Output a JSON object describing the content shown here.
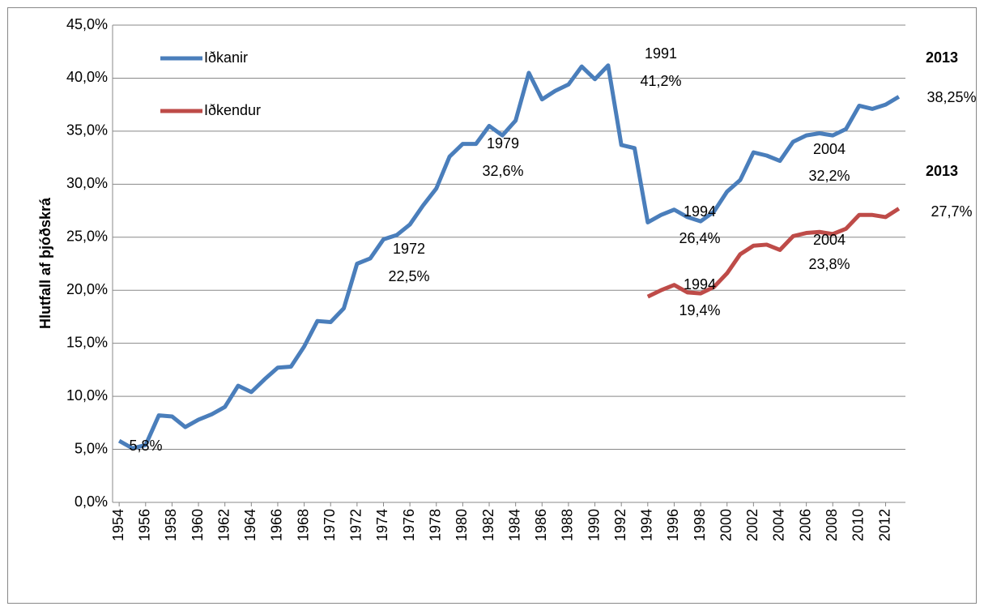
{
  "chart_data": {
    "type": "line",
    "y_label": "Hlutfall af þjóðskrá",
    "x": [
      1954,
      1955,
      1956,
      1957,
      1958,
      1959,
      1960,
      1961,
      1962,
      1963,
      1964,
      1965,
      1966,
      1967,
      1968,
      1969,
      1970,
      1971,
      1972,
      1973,
      1974,
      1975,
      1976,
      1977,
      1978,
      1979,
      1980,
      1981,
      1982,
      1983,
      1984,
      1985,
      1986,
      1987,
      1988,
      1989,
      1990,
      1991,
      1992,
      1993,
      1994,
      1995,
      1996,
      1997,
      1998,
      1999,
      2000,
      2001,
      2002,
      2003,
      2004,
      2005,
      2006,
      2007,
      2008,
      2009,
      2010,
      2011,
      2012,
      2013
    ],
    "xlim": [
      1953.5,
      2013.5
    ],
    "xticks": [
      1954,
      1956,
      1958,
      1960,
      1962,
      1964,
      1966,
      1968,
      1970,
      1972,
      1974,
      1976,
      1978,
      1980,
      1982,
      1984,
      1986,
      1988,
      1990,
      1992,
      1994,
      1996,
      1998,
      2000,
      2002,
      2004,
      2006,
      2008,
      2010,
      2012
    ],
    "ylim": [
      0,
      45
    ],
    "yticks": [
      {
        "value": 0,
        "label": "0,0%"
      },
      {
        "value": 5,
        "label": "5,0%"
      },
      {
        "value": 10,
        "label": "10,0%"
      },
      {
        "value": 15,
        "label": "15,0%"
      },
      {
        "value": 20,
        "label": "20,0%"
      },
      {
        "value": 25,
        "label": "25,0%"
      },
      {
        "value": 30,
        "label": "30,0%"
      },
      {
        "value": 35,
        "label": "35,0%"
      },
      {
        "value": 40,
        "label": "40,0%"
      },
      {
        "value": 45,
        "label": "45,0%"
      }
    ],
    "grid": true,
    "legend": "top-left",
    "series": [
      {
        "name": "Iðkanir",
        "color": "#4a7ebb",
        "values": [
          5.8,
          5.1,
          5.4,
          8.2,
          8.1,
          7.1,
          7.8,
          8.3,
          9.0,
          11.0,
          10.4,
          11.6,
          12.7,
          12.8,
          14.7,
          17.1,
          17.0,
          18.3,
          22.5,
          23.0,
          24.8,
          25.2,
          26.2,
          28.0,
          29.6,
          32.6,
          33.8,
          33.8,
          35.5,
          34.6,
          36.0,
          40.5,
          38.0,
          38.8,
          39.4,
          41.1,
          39.9,
          41.2,
          33.7,
          33.4,
          26.4,
          27.1,
          27.6,
          26.9,
          26.5,
          27.4,
          29.3,
          30.4,
          33.0,
          32.7,
          32.2,
          34.0,
          34.6,
          34.8,
          34.6,
          35.2,
          37.4,
          37.1,
          37.5,
          38.25
        ]
      },
      {
        "name": "Iðkendur",
        "color": "#be4b48",
        "values": [
          null,
          null,
          null,
          null,
          null,
          null,
          null,
          null,
          null,
          null,
          null,
          null,
          null,
          null,
          null,
          null,
          null,
          null,
          null,
          null,
          null,
          null,
          null,
          null,
          null,
          null,
          null,
          null,
          null,
          null,
          null,
          null,
          null,
          null,
          null,
          null,
          null,
          null,
          null,
          null,
          19.4,
          20.0,
          20.5,
          19.8,
          19.7,
          20.3,
          21.6,
          23.4,
          24.2,
          24.3,
          23.8,
          25.1,
          25.4,
          25.5,
          25.3,
          25.8,
          27.1,
          27.1,
          26.9,
          27.7
        ]
      }
    ],
    "annotations": [
      "5,8%",
      "1972",
      "22,5%",
      "1979",
      "32,6%",
      "1991",
      "41,2%",
      "2013",
      "38,25%",
      "2004",
      "32,2%",
      "2013",
      "27,7%",
      "1994",
      "26,4%",
      "2004",
      "23,8%",
      "1994",
      "19,4%"
    ]
  }
}
